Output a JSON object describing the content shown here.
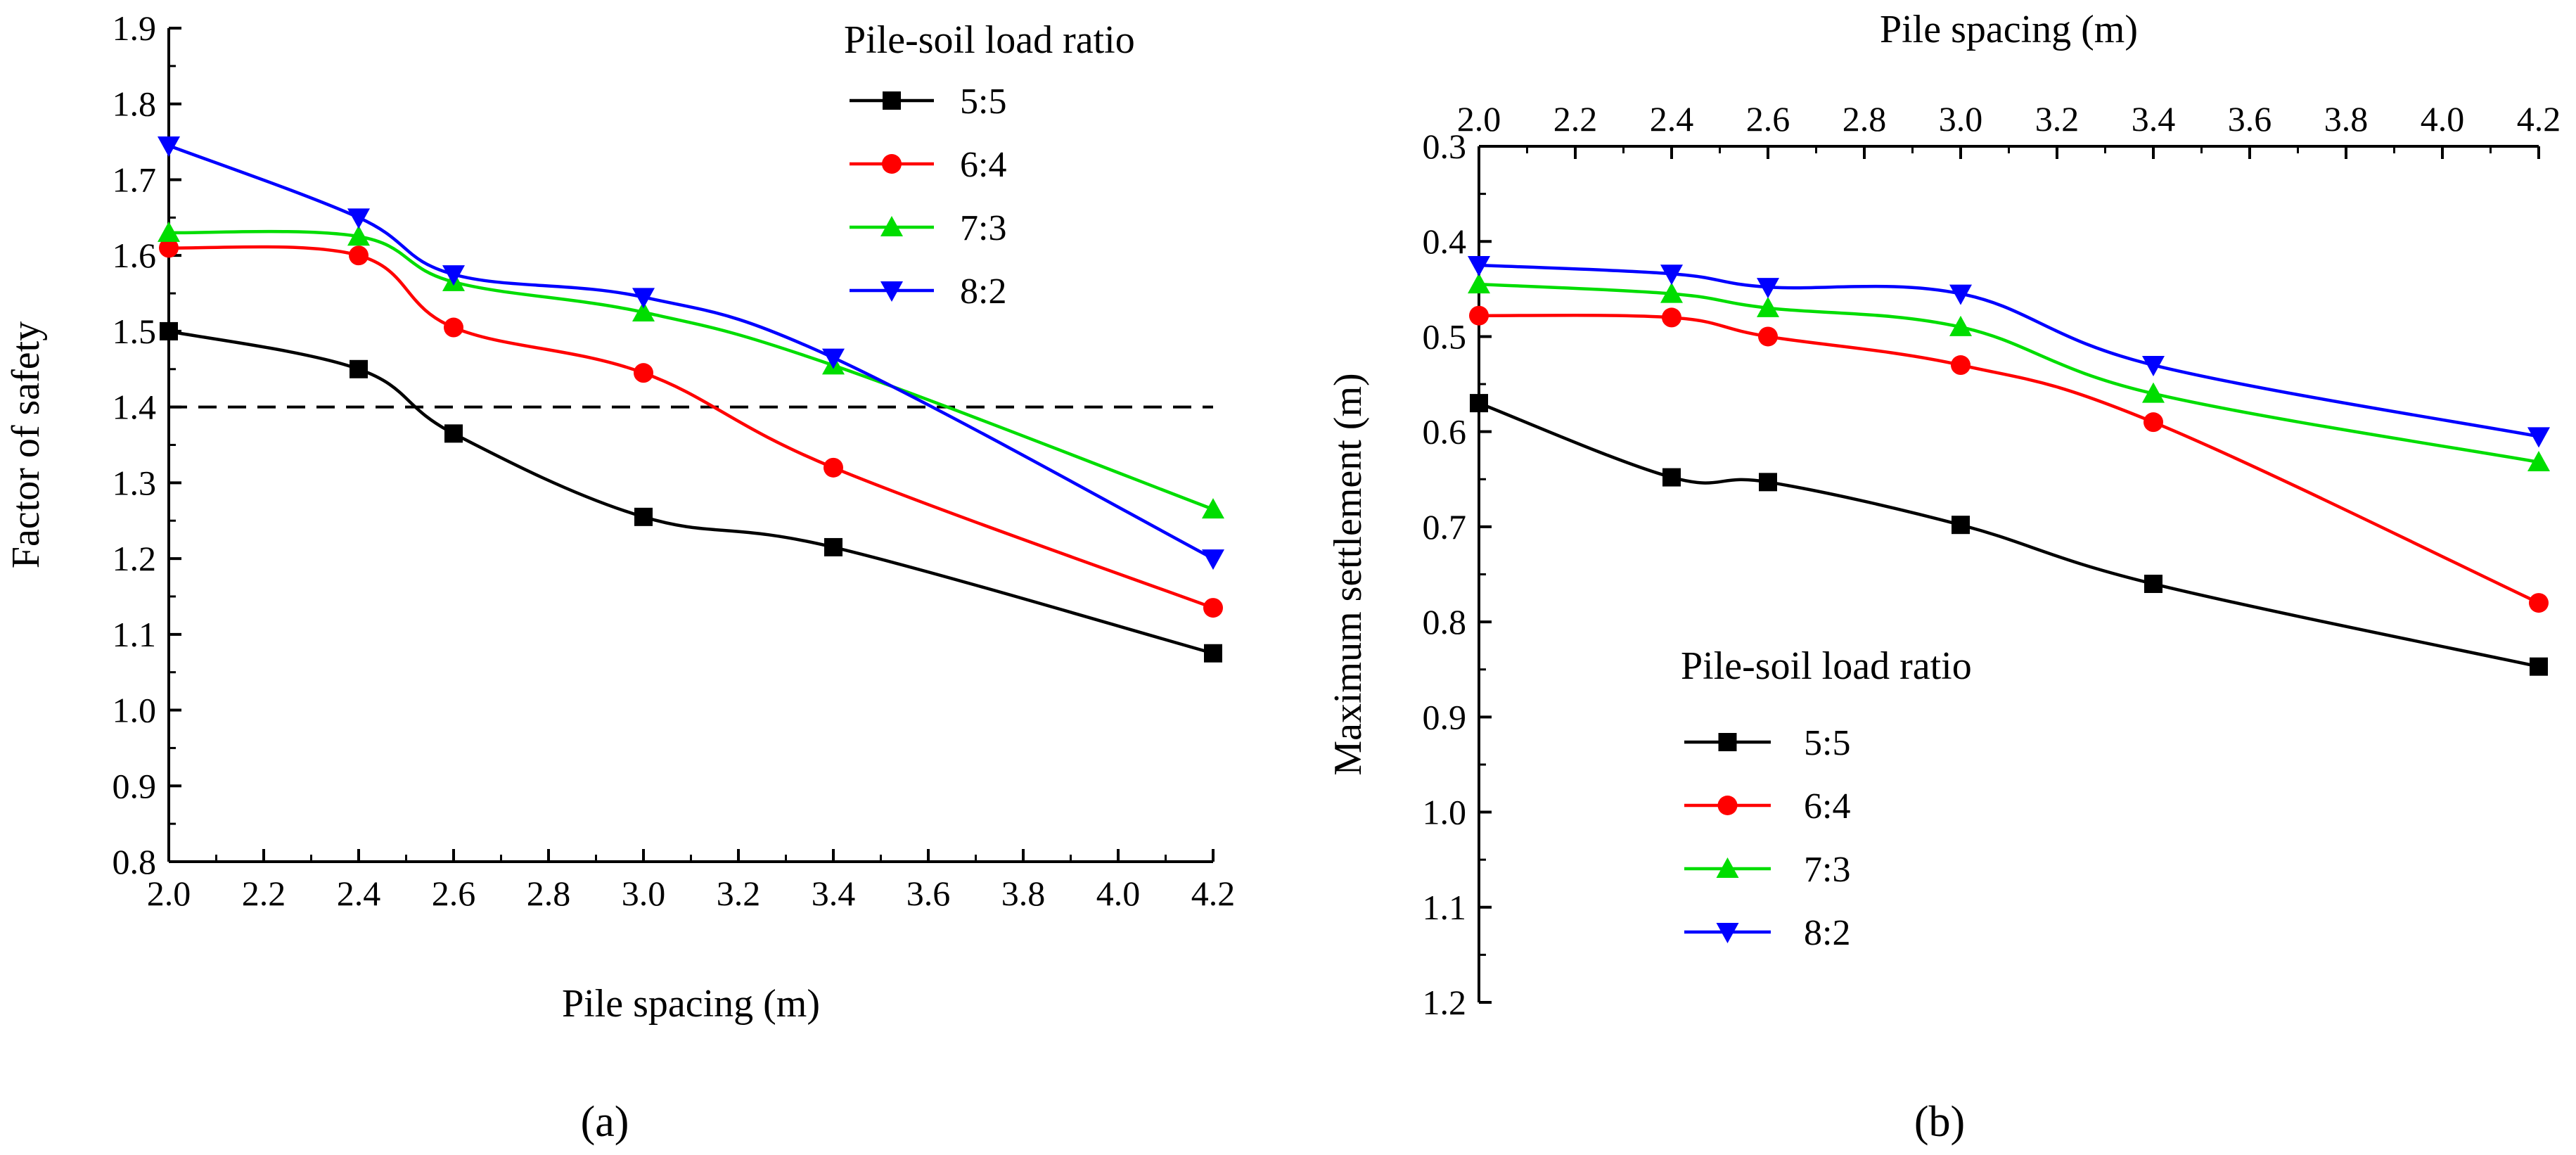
{
  "chart_data": [
    {
      "type": "line",
      "panel_label": "(a)",
      "xlabel": "Pile spacing (m)",
      "ylabel": "Factor of safety",
      "xlim": [
        2.0,
        4.2
      ],
      "ylim": [
        0.8,
        1.9
      ],
      "xticks": [
        "2.0",
        "2.2",
        "2.4",
        "2.6",
        "2.8",
        "3.0",
        "3.2",
        "3.4",
        "3.6",
        "3.8",
        "4.0",
        "4.2"
      ],
      "yticks": [
        "0.8",
        "0.9",
        "1.0",
        "1.1",
        "1.2",
        "1.3",
        "1.4",
        "1.5",
        "1.6",
        "1.7",
        "1.8",
        "1.9"
      ],
      "x_axis_position": "bottom",
      "y_inverted": false,
      "reference_line": {
        "y": 1.4,
        "style": "dashed"
      },
      "legend_title": "Pile-soil load ratio",
      "legend_position": "top-right",
      "x": [
        2.0,
        2.4,
        2.6,
        3.0,
        3.4,
        4.2
      ],
      "series": [
        {
          "name": "5:5",
          "color": "#000000",
          "marker": "square",
          "values": [
            1.5,
            1.45,
            1.365,
            1.255,
            1.215,
            1.075
          ]
        },
        {
          "name": "6:4",
          "color": "#ff0000",
          "marker": "circle",
          "values": [
            1.61,
            1.6,
            1.505,
            1.445,
            1.32,
            1.135
          ]
        },
        {
          "name": "7:3",
          "color": "#00dd00",
          "marker": "triangle-up",
          "values": [
            1.63,
            1.625,
            1.565,
            1.525,
            1.455,
            1.265
          ]
        },
        {
          "name": "8:2",
          "color": "#0000ff",
          "marker": "triangle-down",
          "values": [
            1.745,
            1.65,
            1.575,
            1.545,
            1.465,
            1.2
          ]
        }
      ]
    },
    {
      "type": "line",
      "panel_label": "(b)",
      "xlabel": "Pile spacing (m)",
      "ylabel": "Maximum settlement (m)",
      "xlim": [
        2.0,
        4.2
      ],
      "ylim": [
        0.3,
        1.2
      ],
      "xticks": [
        "2.0",
        "2.2",
        "2.4",
        "2.6",
        "2.8",
        "3.0",
        "3.2",
        "3.4",
        "3.6",
        "3.8",
        "4.0",
        "4.2"
      ],
      "yticks": [
        "0.3",
        "0.4",
        "0.5",
        "0.6",
        "0.7",
        "0.8",
        "0.9",
        "1.0",
        "1.1",
        "1.2"
      ],
      "x_axis_position": "top",
      "y_inverted": true,
      "legend_title": "Pile-soil load ratio",
      "legend_position": "bottom-left",
      "x": [
        2.0,
        2.4,
        2.6,
        3.0,
        3.4,
        4.2
      ],
      "series": [
        {
          "name": "5:5",
          "color": "#000000",
          "marker": "square",
          "values": [
            0.57,
            0.648,
            0.653,
            0.698,
            0.76,
            0.847
          ]
        },
        {
          "name": "6:4",
          "color": "#ff0000",
          "marker": "circle",
          "values": [
            0.478,
            0.48,
            0.5,
            0.53,
            0.59,
            0.78
          ]
        },
        {
          "name": "7:3",
          "color": "#00dd00",
          "marker": "triangle-up",
          "values": [
            0.445,
            0.455,
            0.47,
            0.49,
            0.56,
            0.632
          ]
        },
        {
          "name": "8:2",
          "color": "#0000ff",
          "marker": "triangle-down",
          "values": [
            0.425,
            0.434,
            0.448,
            0.455,
            0.53,
            0.605
          ]
        }
      ]
    }
  ]
}
